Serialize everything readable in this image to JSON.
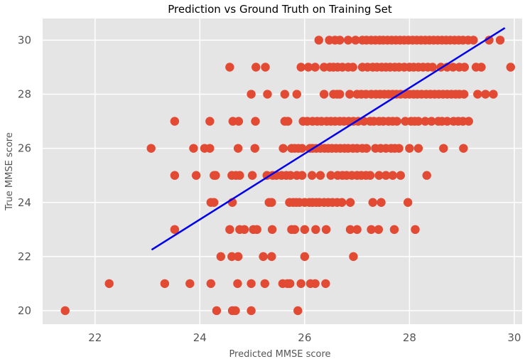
{
  "chart_data": {
    "type": "scatter",
    "title": "Prediction vs Ground Truth on Training Set",
    "xlabel": "Predicted MMSE score",
    "ylabel": "True MMSE score",
    "xlim": [
      21.0,
      30.15
    ],
    "ylim": [
      19.5,
      30.8
    ],
    "xticks": [
      22,
      24,
      26,
      28,
      30
    ],
    "yticks": [
      20,
      22,
      24,
      26,
      28,
      30
    ],
    "grid": true,
    "colors": {
      "points": "#E24A33",
      "fit_line": "#0000EE",
      "plot_bg": "#E5E5E5",
      "grid": "#FFFFFF"
    },
    "fit_line": {
      "x": [
        23.08,
        29.82
      ],
      "y": [
        22.25,
        30.45
      ]
    },
    "series": [
      {
        "points": [
          [
            21.43,
            20
          ],
          [
            24.32,
            20
          ],
          [
            24.62,
            20
          ],
          [
            24.68,
            20
          ],
          [
            24.98,
            20
          ],
          [
            25.87,
            20
          ],
          [
            22.27,
            21
          ],
          [
            23.33,
            21
          ],
          [
            23.81,
            21
          ],
          [
            24.21,
            21
          ],
          [
            24.72,
            21
          ],
          [
            24.98,
            21
          ],
          [
            25.24,
            21
          ],
          [
            25.58,
            21
          ],
          [
            25.67,
            21
          ],
          [
            25.72,
            21
          ],
          [
            25.93,
            21
          ],
          [
            26.11,
            21
          ],
          [
            26.2,
            21
          ],
          [
            26.4,
            21
          ],
          [
            24.4,
            22
          ],
          [
            24.61,
            22
          ],
          [
            24.73,
            22
          ],
          [
            25.21,
            22
          ],
          [
            25.37,
            22
          ],
          [
            26.0,
            22
          ],
          [
            26.93,
            22
          ],
          [
            23.52,
            23
          ],
          [
            24.57,
            23
          ],
          [
            24.76,
            23
          ],
          [
            24.85,
            23
          ],
          [
            25.02,
            23
          ],
          [
            25.09,
            23
          ],
          [
            25.38,
            23
          ],
          [
            25.75,
            23
          ],
          [
            25.81,
            23
          ],
          [
            26.0,
            23
          ],
          [
            26.21,
            23
          ],
          [
            26.41,
            23
          ],
          [
            26.87,
            23
          ],
          [
            27.0,
            23
          ],
          [
            27.27,
            23
          ],
          [
            27.41,
            23
          ],
          [
            27.71,
            23
          ],
          [
            28.11,
            23
          ],
          [
            24.21,
            24
          ],
          [
            24.27,
            24
          ],
          [
            24.62,
            24
          ],
          [
            25.32,
            24
          ],
          [
            25.37,
            24
          ],
          [
            25.71,
            24
          ],
          [
            25.78,
            24
          ],
          [
            25.84,
            24
          ],
          [
            25.9,
            24
          ],
          [
            26.0,
            24
          ],
          [
            26.09,
            24
          ],
          [
            26.15,
            24
          ],
          [
            26.22,
            24
          ],
          [
            26.28,
            24
          ],
          [
            26.37,
            24
          ],
          [
            26.45,
            24
          ],
          [
            26.53,
            24
          ],
          [
            26.62,
            24
          ],
          [
            26.71,
            24
          ],
          [
            26.87,
            24
          ],
          [
            27.3,
            24
          ],
          [
            27.46,
            24
          ],
          [
            27.97,
            24
          ],
          [
            23.52,
            25
          ],
          [
            23.93,
            25
          ],
          [
            24.27,
            25
          ],
          [
            24.3,
            25
          ],
          [
            24.61,
            25
          ],
          [
            24.69,
            25
          ],
          [
            24.76,
            25
          ],
          [
            25.0,
            25
          ],
          [
            25.28,
            25
          ],
          [
            25.39,
            25
          ],
          [
            25.46,
            25
          ],
          [
            25.56,
            25
          ],
          [
            25.65,
            25
          ],
          [
            25.73,
            25
          ],
          [
            25.85,
            25
          ],
          [
            25.95,
            25
          ],
          [
            26.14,
            25
          ],
          [
            26.3,
            25
          ],
          [
            26.5,
            25
          ],
          [
            26.63,
            25
          ],
          [
            26.72,
            25
          ],
          [
            26.8,
            25
          ],
          [
            26.9,
            25
          ],
          [
            27.0,
            25
          ],
          [
            27.08,
            25
          ],
          [
            27.17,
            25
          ],
          [
            27.25,
            25
          ],
          [
            27.42,
            25
          ],
          [
            27.55,
            25
          ],
          [
            27.68,
            25
          ],
          [
            27.83,
            25
          ],
          [
            28.33,
            25
          ],
          [
            23.07,
            26
          ],
          [
            23.88,
            26
          ],
          [
            24.09,
            26
          ],
          [
            24.19,
            26
          ],
          [
            24.73,
            26
          ],
          [
            25.05,
            26
          ],
          [
            25.59,
            26
          ],
          [
            25.75,
            26
          ],
          [
            25.81,
            26
          ],
          [
            25.88,
            26
          ],
          [
            25.95,
            26
          ],
          [
            26.1,
            26
          ],
          [
            26.15,
            26
          ],
          [
            26.22,
            26
          ],
          [
            26.3,
            26
          ],
          [
            26.38,
            26
          ],
          [
            26.45,
            26
          ],
          [
            26.52,
            26
          ],
          [
            26.6,
            26
          ],
          [
            26.68,
            26
          ],
          [
            26.76,
            26
          ],
          [
            26.83,
            26
          ],
          [
            26.92,
            26
          ],
          [
            27.0,
            26
          ],
          [
            27.1,
            26
          ],
          [
            27.18,
            26
          ],
          [
            27.35,
            26
          ],
          [
            27.45,
            26
          ],
          [
            27.55,
            26
          ],
          [
            27.65,
            26
          ],
          [
            27.72,
            26
          ],
          [
            27.8,
            26
          ],
          [
            28.0,
            26
          ],
          [
            28.17,
            26
          ],
          [
            28.65,
            26
          ],
          [
            29.03,
            26
          ],
          [
            23.52,
            27
          ],
          [
            24.19,
            27
          ],
          [
            24.63,
            27
          ],
          [
            24.74,
            27
          ],
          [
            25.06,
            27
          ],
          [
            25.62,
            27
          ],
          [
            25.68,
            27
          ],
          [
            25.97,
            27
          ],
          [
            26.05,
            27
          ],
          [
            26.15,
            27
          ],
          [
            26.24,
            27
          ],
          [
            26.32,
            27
          ],
          [
            26.42,
            27
          ],
          [
            26.5,
            27
          ],
          [
            26.58,
            27
          ],
          [
            26.67,
            27
          ],
          [
            26.75,
            27
          ],
          [
            26.84,
            27
          ],
          [
            26.93,
            27
          ],
          [
            27.02,
            27
          ],
          [
            27.13,
            27
          ],
          [
            27.25,
            27
          ],
          [
            27.32,
            27
          ],
          [
            27.42,
            27
          ],
          [
            27.5,
            27
          ],
          [
            27.6,
            27
          ],
          [
            27.68,
            27
          ],
          [
            27.76,
            27
          ],
          [
            27.92,
            27
          ],
          [
            28.03,
            27
          ],
          [
            28.1,
            27
          ],
          [
            28.17,
            27
          ],
          [
            28.3,
            27
          ],
          [
            28.42,
            27
          ],
          [
            28.55,
            27
          ],
          [
            28.62,
            27
          ],
          [
            28.72,
            27
          ],
          [
            28.84,
            27
          ],
          [
            28.93,
            27
          ],
          [
            29.02,
            27
          ],
          [
            29.13,
            27
          ],
          [
            24.98,
            28
          ],
          [
            25.29,
            28
          ],
          [
            25.62,
            28
          ],
          [
            25.85,
            28
          ],
          [
            26.37,
            28
          ],
          [
            26.55,
            28
          ],
          [
            26.62,
            28
          ],
          [
            26.67,
            28
          ],
          [
            26.86,
            28
          ],
          [
            27.0,
            28
          ],
          [
            27.08,
            28
          ],
          [
            27.17,
            28
          ],
          [
            27.27,
            28
          ],
          [
            27.36,
            28
          ],
          [
            27.44,
            28
          ],
          [
            27.52,
            28
          ],
          [
            27.6,
            28
          ],
          [
            27.68,
            28
          ],
          [
            27.75,
            28
          ],
          [
            27.83,
            28
          ],
          [
            27.92,
            28
          ],
          [
            28.0,
            28
          ],
          [
            28.08,
            28
          ],
          [
            28.15,
            28
          ],
          [
            28.23,
            28
          ],
          [
            28.32,
            28
          ],
          [
            28.4,
            28
          ],
          [
            28.48,
            28
          ],
          [
            28.56,
            28
          ],
          [
            28.64,
            28
          ],
          [
            28.72,
            28
          ],
          [
            28.8,
            28
          ],
          [
            28.88,
            28
          ],
          [
            28.95,
            28
          ],
          [
            29.04,
            28
          ],
          [
            29.3,
            28
          ],
          [
            29.45,
            28
          ],
          [
            29.6,
            28
          ],
          [
            24.57,
            29
          ],
          [
            25.07,
            29
          ],
          [
            25.25,
            29
          ],
          [
            25.93,
            29
          ],
          [
            26.07,
            29
          ],
          [
            26.2,
            29
          ],
          [
            26.37,
            29
          ],
          [
            26.48,
            29
          ],
          [
            26.55,
            29
          ],
          [
            26.63,
            29
          ],
          [
            26.72,
            29
          ],
          [
            26.83,
            29
          ],
          [
            26.92,
            29
          ],
          [
            27.1,
            29
          ],
          [
            27.2,
            29
          ],
          [
            27.3,
            29
          ],
          [
            27.38,
            29
          ],
          [
            27.47,
            29
          ],
          [
            27.55,
            29
          ],
          [
            27.63,
            29
          ],
          [
            27.72,
            29
          ],
          [
            27.8,
            29
          ],
          [
            27.9,
            29
          ],
          [
            28.0,
            29
          ],
          [
            28.08,
            29
          ],
          [
            28.17,
            29
          ],
          [
            28.26,
            29
          ],
          [
            28.35,
            29
          ],
          [
            28.44,
            29
          ],
          [
            28.6,
            29
          ],
          [
            28.72,
            29
          ],
          [
            28.83,
            29
          ],
          [
            28.95,
            29
          ],
          [
            29.05,
            29
          ],
          [
            29.27,
            29
          ],
          [
            29.37,
            29
          ],
          [
            29.93,
            29
          ],
          [
            26.27,
            30
          ],
          [
            26.47,
            30
          ],
          [
            26.58,
            30
          ],
          [
            26.67,
            30
          ],
          [
            26.83,
            30
          ],
          [
            26.97,
            30
          ],
          [
            27.1,
            30
          ],
          [
            27.18,
            30
          ],
          [
            27.27,
            30
          ],
          [
            27.35,
            30
          ],
          [
            27.43,
            30
          ],
          [
            27.5,
            30
          ],
          [
            27.58,
            30
          ],
          [
            27.66,
            30
          ],
          [
            27.74,
            30
          ],
          [
            27.82,
            30
          ],
          [
            27.9,
            30
          ],
          [
            27.98,
            30
          ],
          [
            28.06,
            30
          ],
          [
            28.14,
            30
          ],
          [
            28.22,
            30
          ],
          [
            28.3,
            30
          ],
          [
            28.38,
            30
          ],
          [
            28.46,
            30
          ],
          [
            28.54,
            30
          ],
          [
            28.62,
            30
          ],
          [
            28.7,
            30
          ],
          [
            28.78,
            30
          ],
          [
            28.86,
            30
          ],
          [
            28.94,
            30
          ],
          [
            29.02,
            30
          ],
          [
            29.12,
            30
          ],
          [
            29.22,
            30
          ],
          [
            29.52,
            30
          ],
          [
            29.73,
            30
          ]
        ]
      }
    ]
  }
}
